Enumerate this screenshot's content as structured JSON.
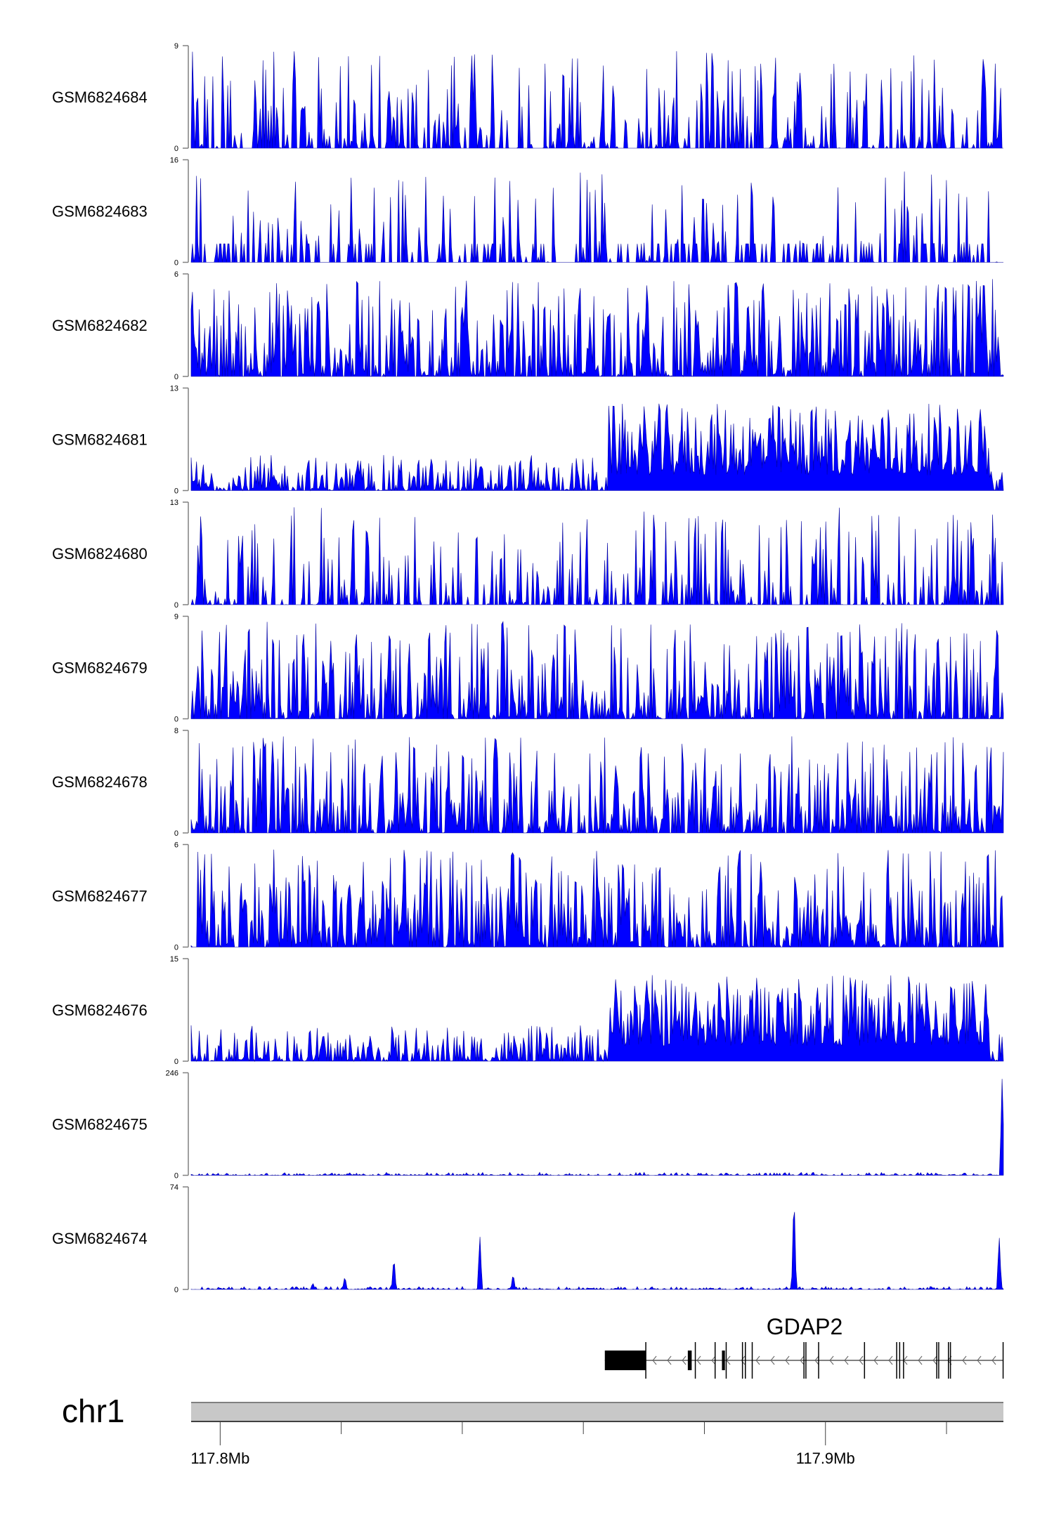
{
  "chart_data": {
    "type": "area",
    "title": "",
    "xlabel": "",
    "chromosome": "chr1",
    "xlim_mb": [
      117.7952,
      117.9294
    ],
    "x_tick_labels": [
      {
        "mb": 117.8,
        "label": "117.8Mb"
      },
      {
        "mb": 117.9,
        "label": "117.9Mb"
      }
    ],
    "x_minor_ticks_mb": [
      117.8,
      117.82,
      117.84,
      117.86,
      117.88,
      117.9,
      117.92
    ],
    "series_color": "#0000ff",
    "tracks": [
      {
        "name": "GSM6824684",
        "ymax": 9,
        "ymin": 0,
        "pattern": "sparse"
      },
      {
        "name": "GSM6824683",
        "ymax": 16,
        "ymin": 0,
        "pattern": "very-sparse"
      },
      {
        "name": "GSM6824682",
        "ymax": 6,
        "ymin": 0,
        "pattern": "dense"
      },
      {
        "name": "GSM6824681",
        "ymax": 13,
        "ymin": 0,
        "pattern": "broad"
      },
      {
        "name": "GSM6824680",
        "ymax": 13,
        "ymin": 0,
        "pattern": "sparse"
      },
      {
        "name": "GSM6824679",
        "ymax": 9,
        "ymin": 0,
        "pattern": "dense"
      },
      {
        "name": "GSM6824678",
        "ymax": 8,
        "ymin": 0,
        "pattern": "dense"
      },
      {
        "name": "GSM6824677",
        "ymax": 6,
        "ymin": 0,
        "pattern": "dense"
      },
      {
        "name": "GSM6824676",
        "ymax": 15,
        "ymin": 0,
        "pattern": "broad"
      },
      {
        "name": "GSM6824675",
        "ymax": 246,
        "ymin": 0,
        "pattern": "peaks",
        "peaks": [
          {
            "mb": 117.9292,
            "value": 246
          }
        ]
      },
      {
        "name": "GSM6824674",
        "ymax": 74,
        "ymin": 0,
        "pattern": "peaks",
        "peaks": [
          {
            "mb": 117.8948,
            "value": 74
          },
          {
            "mb": 117.8429,
            "value": 40
          },
          {
            "mb": 117.8287,
            "value": 25
          },
          {
            "mb": 117.8484,
            "value": 12
          },
          {
            "mb": 117.8206,
            "value": 10
          },
          {
            "mb": 117.8153,
            "value": 5
          },
          {
            "mb": 117.9287,
            "value": 40
          }
        ]
      }
    ],
    "gene": {
      "name": "GDAP2",
      "strand": "-",
      "start_mb": 117.86355,
      "end_mb": 117.92935,
      "utr_block": [
        117.86355,
        117.87032
      ],
      "exons_thick": [
        [
          117.87726,
          117.8779
        ],
        [
          117.8829,
          117.88339
        ]
      ],
      "exon_lines_mb": [
        117.87032,
        117.8785,
        117.88177,
        117.8836,
        117.88629,
        117.88677,
        117.8879,
        117.89645,
        117.89677,
        117.89887,
        117.90645,
        117.91177,
        117.91226,
        117.9129,
        117.91839,
        117.91871,
        117.92032,
        117.92065,
        117.92935
      ]
    }
  }
}
